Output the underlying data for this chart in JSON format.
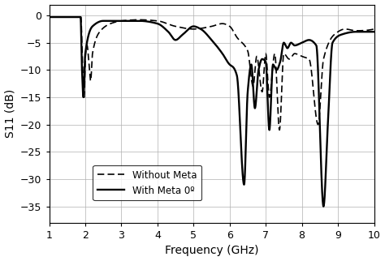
{
  "title": "",
  "xlabel": "Frequency (GHz)",
  "ylabel": "S11 (dB)",
  "xlim": [
    1,
    10
  ],
  "ylim": [
    -38,
    2
  ],
  "yticks": [
    0,
    -5,
    -10,
    -15,
    -20,
    -25,
    -30,
    -35
  ],
  "xticks": [
    1,
    2,
    3,
    4,
    5,
    6,
    7,
    8,
    9,
    10
  ],
  "grid_color": "#b0b0b0",
  "line_color": "#000000",
  "legend_labels": [
    "Without Meta",
    "With Meta 0º"
  ],
  "figsize": [
    4.74,
    3.22
  ],
  "dpi": 100,
  "without_meta_x": [
    1.0,
    1.88,
    1.92,
    1.97,
    2.0,
    2.05,
    2.1,
    2.15,
    2.2,
    2.4,
    2.7,
    3.0,
    3.5,
    4.0,
    4.5,
    5.0,
    5.5,
    5.8,
    6.0,
    6.2,
    6.5,
    6.65,
    6.75,
    6.9,
    7.0,
    7.1,
    7.25,
    7.38,
    7.5,
    7.65,
    7.8,
    8.0,
    8.2,
    8.45,
    8.6,
    8.9,
    9.2,
    9.5,
    10.0
  ],
  "without_meta_y": [
    -0.3,
    -0.3,
    -8.0,
    -15.0,
    -8.0,
    -5.5,
    -8.5,
    -12.0,
    -7.0,
    -3.0,
    -1.5,
    -1.0,
    -0.8,
    -1.0,
    -2.0,
    -2.5,
    -2.0,
    -1.5,
    -2.0,
    -4.0,
    -6.5,
    -13.0,
    -7.5,
    -14.0,
    -7.0,
    -15.0,
    -7.0,
    -21.0,
    -7.0,
    -8.0,
    -7.0,
    -7.5,
    -8.0,
    -20.0,
    -8.0,
    -3.5,
    -2.5,
    -2.8,
    -2.5
  ],
  "with_meta_x": [
    1.0,
    1.87,
    1.91,
    1.95,
    2.0,
    2.2,
    2.5,
    3.0,
    3.5,
    4.0,
    4.3,
    4.5,
    4.7,
    5.0,
    5.2,
    5.5,
    5.8,
    6.0,
    6.1,
    6.2,
    6.4,
    6.5,
    6.6,
    6.7,
    6.8,
    6.9,
    7.0,
    7.1,
    7.2,
    7.3,
    7.4,
    7.5,
    7.6,
    7.7,
    7.8,
    8.0,
    8.2,
    8.4,
    8.6,
    8.72,
    8.85,
    9.1,
    9.5,
    10.0
  ],
  "with_meta_y": [
    -0.3,
    -0.3,
    -10.0,
    -15.0,
    -7.0,
    -2.0,
    -1.0,
    -1.0,
    -1.0,
    -1.5,
    -3.0,
    -4.5,
    -3.5,
    -2.0,
    -2.5,
    -4.5,
    -7.0,
    -9.0,
    -9.5,
    -11.0,
    -31.0,
    -14.0,
    -9.0,
    -17.0,
    -10.0,
    -8.0,
    -8.5,
    -21.0,
    -9.0,
    -10.0,
    -8.5,
    -5.0,
    -6.0,
    -5.0,
    -5.5,
    -5.0,
    -4.5,
    -5.5,
    -35.0,
    -20.0,
    -5.0,
    -3.5,
    -3.0,
    -3.0
  ]
}
